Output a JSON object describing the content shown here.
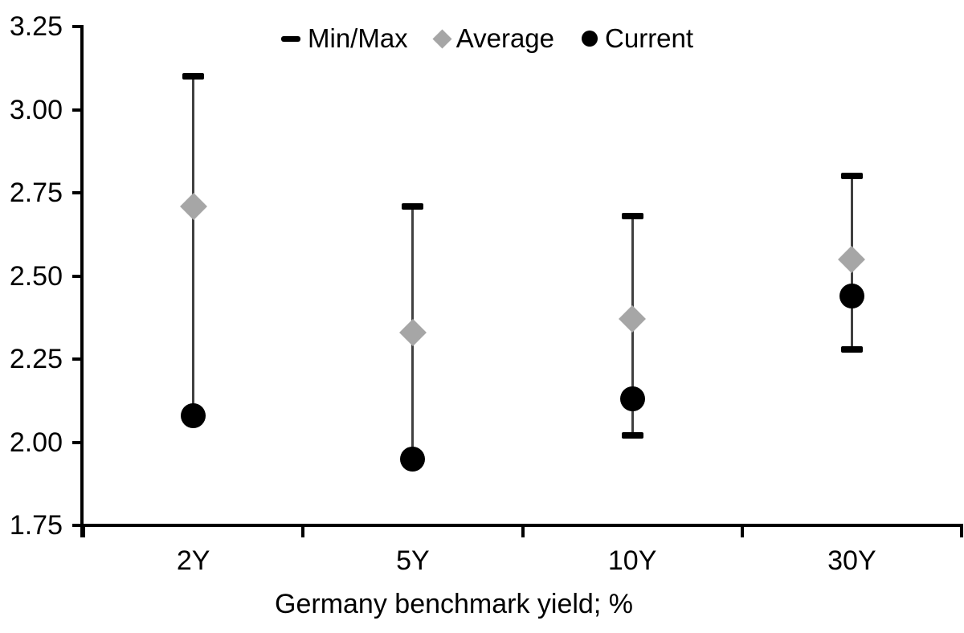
{
  "legend": {
    "items": [
      {
        "label": "Min/Max",
        "marker": "dash",
        "color": "#000000"
      },
      {
        "label": "Average",
        "marker": "diamond",
        "color": "#a6a6a6"
      },
      {
        "label": "Current",
        "marker": "circle",
        "color": "#000000"
      }
    ]
  },
  "chart_data": {
    "type": "scatter",
    "title": "",
    "xlabel": "Germany benchmark yield; %",
    "ylabel": "",
    "categories": [
      "2Y",
      "5Y",
      "10Y",
      "30Y"
    ],
    "ylim": [
      1.75,
      3.25
    ],
    "ytick_interval": 0.25,
    "ytick_labels": [
      "3.25",
      "3.00",
      "2.75",
      "2.50",
      "2.25",
      "2.00",
      "1.75"
    ],
    "grid": false,
    "legend_position": "top-center",
    "axis_color": "#000000",
    "series": [
      {
        "name": "Min/Max",
        "type": "errorbar",
        "line_color": "#404040",
        "cap_color": "#000000",
        "min": [
          2.08,
          1.95,
          2.02,
          2.28
        ],
        "max": [
          3.1,
          2.71,
          2.68,
          2.8
        ]
      },
      {
        "name": "Average",
        "type": "point",
        "marker": "diamond",
        "color": "#a6a6a6",
        "values": [
          2.71,
          2.33,
          2.37,
          2.55
        ]
      },
      {
        "name": "Current",
        "type": "point",
        "marker": "circle",
        "color": "#000000",
        "values": [
          2.08,
          1.95,
          2.13,
          2.44
        ]
      }
    ]
  }
}
